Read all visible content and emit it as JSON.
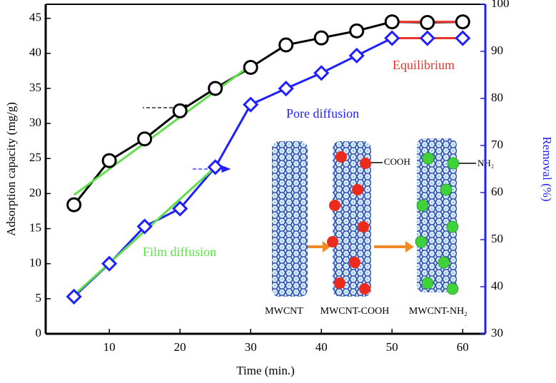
{
  "chart_data": {
    "type": "line",
    "x_label": "Time (min.)",
    "y_label": "Adsorption capacity (mg/g)",
    "y2_label": "Removal (%)",
    "x": [
      5,
      10,
      15,
      20,
      25,
      30,
      35,
      40,
      45,
      50,
      55,
      60
    ],
    "xlim": [
      1,
      63.2
    ],
    "xticks": [
      10,
      20,
      30,
      40,
      50,
      60
    ],
    "ylim": [
      0,
      47
    ],
    "yticks": [
      0,
      5,
      10,
      15,
      20,
      25,
      30,
      35,
      40,
      45
    ],
    "y2lim": [
      30,
      100
    ],
    "y2ticks": [
      30,
      40,
      50,
      60,
      70,
      80,
      90,
      100
    ],
    "series": [
      {
        "color": "#000000",
        "marker": "circle",
        "values": [
          18.4,
          24.7,
          27.8,
          31.8,
          35.0,
          38.0,
          41.2,
          42.2,
          43.2,
          44.5,
          44.4,
          44.5
        ]
      },
      {
        "color": "#1f1fff",
        "marker": "diamond",
        "axis": "y2",
        "values": [
          37.9,
          44.9,
          52.8,
          56.6,
          65.4,
          78.7,
          82.1,
          85.4,
          89.1,
          92.8,
          92.8,
          92.8
        ]
      }
    ],
    "fit_lines": [
      {
        "color": "#5ee04a",
        "x": [
          5,
          30
        ],
        "values": [
          19.8,
          38.3
        ]
      },
      {
        "color": "#5ee04a",
        "axis": "y2",
        "x": [
          5,
          25
        ],
        "values": [
          38.2,
          65.4
        ]
      },
      {
        "color": "#e8332a",
        "x": [
          50,
          60
        ],
        "values": [
          44.5,
          44.5
        ]
      },
      {
        "color": "#e8332a",
        "axis": "y2",
        "x": [
          50,
          60
        ],
        "values": [
          92.8,
          92.8
        ]
      }
    ],
    "annotations": [
      "Film diffusion",
      "Pore diffusion",
      "Equilibrium"
    ],
    "inset_labels": [
      "MWCNT",
      "MWCNT-COOH",
      "MWCNT-NH₂",
      "COOH",
      "NH₂"
    ]
  }
}
